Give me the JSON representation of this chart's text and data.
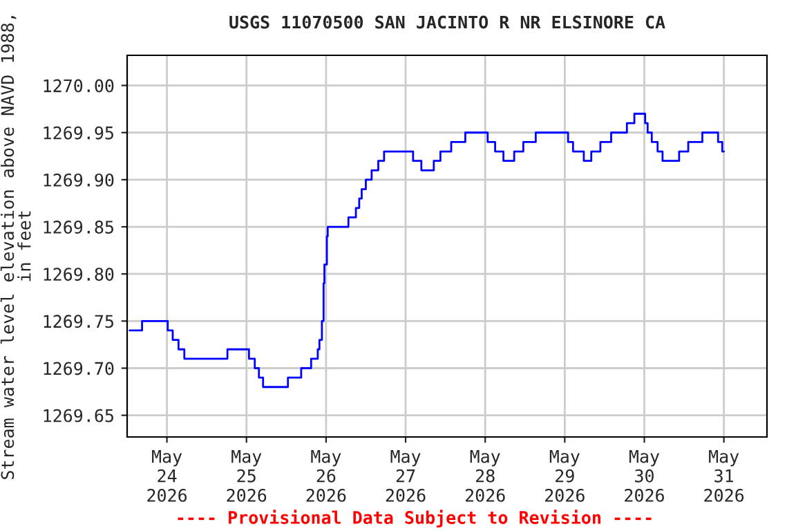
{
  "chart_data": {
    "type": "step",
    "title": "USGS 11070500 SAN JACINTO R NR ELSINORE CA",
    "ylabel": "Stream water level elevation above NAVD 1988, in feet",
    "annotations": [
      "---- Provisional Data Subject to Revision ----"
    ],
    "x": [
      "2026-05-23T12:45",
      "2026-05-23T16:30",
      "2026-05-24T00:15",
      "2026-05-24T01:45",
      "2026-05-24T03:30",
      "2026-05-24T05:15",
      "2026-05-24T18:15",
      "2026-05-25T00:45",
      "2026-05-25T02:30",
      "2026-05-25T03:45",
      "2026-05-25T05:00",
      "2026-05-25T12:30",
      "2026-05-25T16:30",
      "2026-05-25T19:30",
      "2026-05-25T21:30",
      "2026-05-25T22:00",
      "2026-05-25T22:45",
      "2026-05-25T23:15",
      "2026-05-25T23:30",
      "2026-05-26T00:15",
      "2026-05-26T00:30",
      "2026-05-26T06:45",
      "2026-05-26T09:00",
      "2026-05-26T10:00",
      "2026-05-26T10:45",
      "2026-05-26T12:00",
      "2026-05-26T13:45",
      "2026-05-26T15:45",
      "2026-05-26T17:30",
      "2026-05-27T02:15",
      "2026-05-27T04:45",
      "2026-05-27T08:30",
      "2026-05-27T10:30",
      "2026-05-27T13:45",
      "2026-05-27T18:00",
      "2026-05-28T00:45",
      "2026-05-28T03:00",
      "2026-05-28T05:30",
      "2026-05-28T08:45",
      "2026-05-28T11:30",
      "2026-05-28T15:15",
      "2026-05-29T01:00",
      "2026-05-29T02:30",
      "2026-05-29T05:45",
      "2026-05-29T08:00",
      "2026-05-29T10:45",
      "2026-05-29T14:00",
      "2026-05-29T18:45",
      "2026-05-29T21:00",
      "2026-05-30T00:15",
      "2026-05-30T01:00",
      "2026-05-30T02:15",
      "2026-05-30T04:00",
      "2026-05-30T05:30",
      "2026-05-30T10:30",
      "2026-05-30T13:15",
      "2026-05-30T17:30",
      "2026-05-30T22:15",
      "2026-05-30T23:30",
      "2026-05-31T00:00"
    ],
    "series": [
      {
        "color": "#0000ff",
        "values": [
          1269.74,
          1269.75,
          1269.74,
          1269.73,
          1269.72,
          1269.71,
          1269.72,
          1269.71,
          1269.7,
          1269.69,
          1269.68,
          1269.69,
          1269.7,
          1269.71,
          1269.72,
          1269.73,
          1269.75,
          1269.79,
          1269.81,
          1269.84,
          1269.85,
          1269.86,
          1269.87,
          1269.88,
          1269.89,
          1269.9,
          1269.91,
          1269.92,
          1269.93,
          1269.92,
          1269.91,
          1269.92,
          1269.93,
          1269.94,
          1269.95,
          1269.94,
          1269.93,
          1269.92,
          1269.93,
          1269.94,
          1269.95,
          1269.94,
          1269.93,
          1269.92,
          1269.93,
          1269.94,
          1269.95,
          1269.96,
          1269.97,
          1269.96,
          1269.95,
          1269.94,
          1269.93,
          1269.92,
          1269.93,
          1269.94,
          1269.95,
          1269.94,
          1269.93,
          1269.93
        ]
      }
    ],
    "xlim": [
      "2026-05-23T12:00",
      "2026-05-31T13:00"
    ],
    "xticks": [
      {
        "value": "2026-05-24",
        "label": "May\n24\n2026"
      },
      {
        "value": "2026-05-25",
        "label": "May\n25\n2026"
      },
      {
        "value": "2026-05-26",
        "label": "May\n26\n2026"
      },
      {
        "value": "2026-05-27",
        "label": "May\n27\n2026"
      },
      {
        "value": "2026-05-28",
        "label": "May\n28\n2026"
      },
      {
        "value": "2026-05-29",
        "label": "May\n29\n2026"
      },
      {
        "value": "2026-05-30",
        "label": "May\n30\n2026"
      },
      {
        "value": "2026-05-31",
        "label": "May\n31\n2026"
      }
    ],
    "ylim": [
      1269.627,
      1270.032
    ],
    "yticks": [
      {
        "value": 1269.65,
        "label": "1269.65"
      },
      {
        "value": 1269.7,
        "label": "1269.70"
      },
      {
        "value": 1269.75,
        "label": "1269.75"
      },
      {
        "value": 1269.8,
        "label": "1269.80"
      },
      {
        "value": 1269.85,
        "label": "1269.85"
      },
      {
        "value": 1269.9,
        "label": "1269.90"
      },
      {
        "value": 1269.95,
        "label": "1269.95"
      },
      {
        "value": 1270.0,
        "label": "1270.00"
      }
    ],
    "grid": true,
    "line_style": "solid",
    "marker": "none"
  }
}
